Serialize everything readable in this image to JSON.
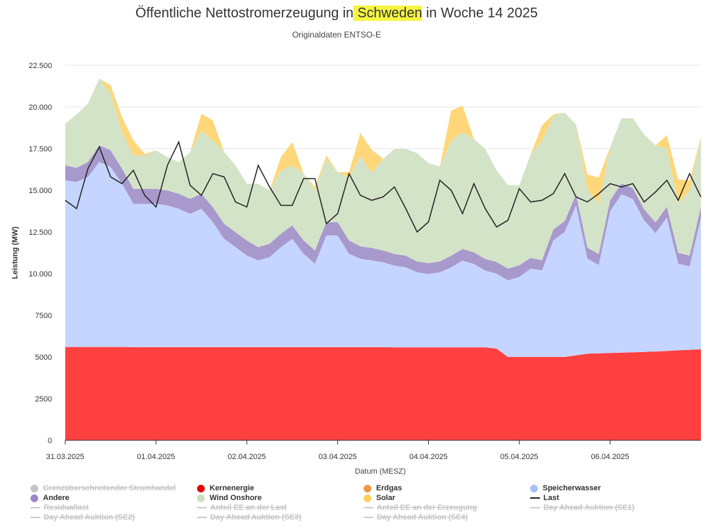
{
  "header": {
    "title_pre": "Öffentliche Nettostromerzeugung in",
    "title_hl": "Schweden",
    "title_post": "in Woche 14 2025",
    "subtitle": "Originaldaten ENTSO-E"
  },
  "chart_data": {
    "type": "area",
    "title": "Öffentliche Nettostromerzeugung in Schweden in Woche 14 2025",
    "subtitle": "Originaldaten ENTSO-E",
    "xlabel": "Datum (MESZ)",
    "ylabel": "Leistung (MW)",
    "ylim": [
      0,
      22500
    ],
    "xlim": [
      0,
      168
    ],
    "yticks": [
      0,
      2500,
      5000,
      7500,
      10000,
      12500,
      15000,
      17500,
      20000,
      22500
    ],
    "ytick_labels": [
      "0",
      "2500",
      "5000",
      "7500",
      "10.000",
      "12.500",
      "15.000",
      "17.500",
      "20.000",
      "22.500"
    ],
    "xticks": [
      0,
      24,
      48,
      72,
      96,
      120,
      144
    ],
    "xtick_labels": [
      "31.03.2025",
      "01.04.2025",
      "02.04.2025",
      "03.04.2025",
      "04.04.2025",
      "05.04.2025",
      "06.04.2025"
    ],
    "x": [
      0,
      3,
      6,
      9,
      12,
      15,
      18,
      21,
      24,
      27,
      30,
      33,
      36,
      39,
      42,
      45,
      48,
      51,
      54,
      57,
      60,
      63,
      66,
      69,
      72,
      75,
      78,
      81,
      84,
      87,
      90,
      93,
      96,
      99,
      102,
      105,
      108,
      111,
      114,
      117,
      120,
      123,
      126,
      129,
      132,
      135,
      138,
      141,
      144,
      147,
      150,
      153,
      156,
      159,
      162,
      165,
      168
    ],
    "series": [
      {
        "name": "Kernenergie",
        "color": "#ff4040",
        "stack": true,
        "values": [
          5600,
          5600,
          5600,
          5600,
          5600,
          5600,
          5590,
          5590,
          5590,
          5590,
          5590,
          5590,
          5590,
          5590,
          5590,
          5590,
          5590,
          5590,
          5590,
          5590,
          5590,
          5590,
          5590,
          5590,
          5590,
          5590,
          5590,
          5590,
          5590,
          5580,
          5580,
          5580,
          5580,
          5580,
          5580,
          5580,
          5580,
          5580,
          5500,
          5000,
          5000,
          5000,
          5000,
          5000,
          5000,
          5100,
          5200,
          5220,
          5240,
          5260,
          5280,
          5300,
          5330,
          5360,
          5400,
          5430,
          5460
        ]
      },
      {
        "name": "Speicherwasser",
        "color": "#c5d5ff",
        "stack": true,
        "values": [
          10000,
          9900,
          10200,
          11100,
          10800,
          9800,
          8600,
          8600,
          8600,
          8500,
          8300,
          8000,
          8300,
          7500,
          6500,
          6000,
          5500,
          5200,
          5400,
          6000,
          6500,
          5600,
          5000,
          6700,
          6700,
          5600,
          5300,
          5200,
          5100,
          4900,
          4800,
          4500,
          4400,
          4500,
          4800,
          5200,
          5000,
          4600,
          4500,
          4600,
          4800,
          5300,
          5200,
          7000,
          7500,
          9000,
          5700,
          5300,
          8500,
          9500,
          9200,
          7900,
          7100,
          8000,
          5200,
          5000,
          7900
        ]
      },
      {
        "name": "Andere",
        "color": "#a899cc",
        "stack": true,
        "values": [
          900,
          850,
          900,
          1000,
          1000,
          900,
          900,
          900,
          900,
          900,
          900,
          900,
          900,
          900,
          900,
          900,
          900,
          800,
          800,
          800,
          800,
          800,
          800,
          800,
          800,
          800,
          750,
          750,
          700,
          700,
          700,
          650,
          650,
          650,
          700,
          700,
          700,
          700,
          700,
          700,
          700,
          650,
          600,
          650,
          650,
          650,
          650,
          650,
          650,
          650,
          650,
          650,
          650,
          650,
          650,
          650,
          650
        ]
      },
      {
        "name": "Wind Onshore",
        "color": "#d3e3c8",
        "stack": true,
        "values": [
          2500,
          3200,
          3500,
          4000,
          3400,
          2200,
          2000,
          2000,
          2300,
          2000,
          1900,
          2800,
          3800,
          4000,
          4300,
          4000,
          3400,
          3800,
          3200,
          3800,
          3600,
          4000,
          3600,
          3800,
          3000,
          3800,
          5400,
          4500,
          5500,
          6300,
          6400,
          6500,
          6000,
          5700,
          6900,
          7000,
          6800,
          6600,
          5500,
          5000,
          4800,
          6200,
          7200,
          6800,
          6500,
          4200,
          3500,
          3000,
          3200,
          3900,
          4200,
          4500,
          4600,
          3500,
          3000,
          3900,
          4200
        ]
      },
      {
        "name": "Solar",
        "color": "#ffd77a",
        "stack": true,
        "values": [
          0,
          0,
          0,
          0,
          500,
          900,
          900,
          100,
          0,
          0,
          0,
          0,
          1000,
          1200,
          0,
          0,
          0,
          0,
          0,
          800,
          1400,
          0,
          200,
          200,
          0,
          300,
          1400,
          1400,
          0,
          0,
          0,
          0,
          0,
          0,
          1800,
          1600,
          0,
          0,
          0,
          0,
          0,
          0,
          900,
          100,
          0,
          0,
          900,
          1600,
          0,
          0,
          0,
          0,
          0,
          800,
          1400,
          600,
          0
        ]
      },
      {
        "name": "Last",
        "color": "#222222",
        "stack": false,
        "values": [
          14400,
          13900,
          16300,
          17600,
          15800,
          15400,
          16200,
          14700,
          14000,
          16500,
          17900,
          15300,
          14700,
          16000,
          15800,
          14300,
          14000,
          16500,
          15200,
          14100,
          14100,
          15700,
          15700,
          13000,
          13600,
          16000,
          14700,
          14400,
          14600,
          15200,
          13900,
          12500,
          13100,
          15600,
          15000,
          13600,
          15400,
          13900,
          12800,
          13200,
          15100,
          14300,
          14400,
          14800,
          16000,
          14600,
          14300,
          14800,
          15400,
          15200,
          15400,
          14300,
          14900,
          15600,
          14400,
          16000,
          14600
        ]
      }
    ]
  },
  "legend": [
    {
      "label": "Grenzüberschreitender Stromhandel",
      "kind": "dot",
      "color": "#c4c4c4",
      "active": false
    },
    {
      "label": "Kernenergie",
      "kind": "dot",
      "color": "#e60000",
      "active": true
    },
    {
      "label": "Erdgas",
      "kind": "dot",
      "color": "#f29446",
      "active": true
    },
    {
      "label": "Speicherwasser",
      "kind": "dot",
      "color": "#a3c1f4",
      "active": true
    },
    {
      "label": "Andere",
      "kind": "dot",
      "color": "#9a86c4",
      "active": true
    },
    {
      "label": "Wind Onshore",
      "kind": "dot",
      "color": "#c9dfc0",
      "active": true
    },
    {
      "label": "Solar",
      "kind": "dot",
      "color": "#ffd05a",
      "active": true
    },
    {
      "label": "Last",
      "kind": "line",
      "color": "#222222",
      "active": true
    },
    {
      "label": "Residuallast",
      "kind": "line",
      "color": "#cccccc",
      "active": false
    },
    {
      "label": "Anteil EE an der Last",
      "kind": "line",
      "color": "#cccccc",
      "active": false
    },
    {
      "label": "Anteil EE an der Erzeugung",
      "kind": "line",
      "color": "#cccccc",
      "active": false
    },
    {
      "label": "Day Ahead Auktion (SE1)",
      "kind": "line",
      "color": "#cccccc",
      "active": false
    },
    {
      "label": "Day Ahead Auktion (SE2)",
      "kind": "line",
      "color": "#cccccc",
      "active": false
    },
    {
      "label": "Day Ahead Auktion (SE3)",
      "kind": "line",
      "color": "#cccccc",
      "active": false
    },
    {
      "label": "Day Ahead Auktion (SE4)",
      "kind": "line",
      "color": "#cccccc",
      "active": false
    }
  ]
}
